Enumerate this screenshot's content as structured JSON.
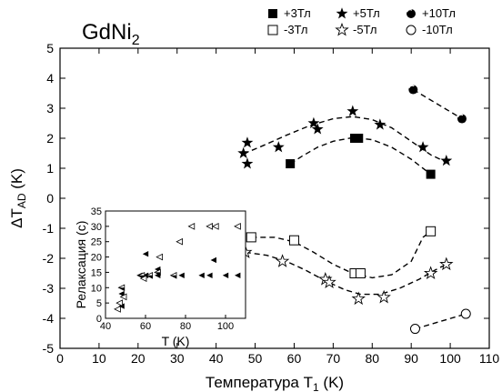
{
  "chart_data": [
    {
      "type": "scatter",
      "title": "GdNi",
      "title_sub": "2",
      "xlabel": "Температура T",
      "xlabel_sub": "1",
      "xlabel_unit": " (K)",
      "ylabel": "ΔT",
      "ylabel_sub": "AD",
      "ylabel_unit": " (K)",
      "xlim": [
        0,
        110
      ],
      "ylim": [
        -5,
        5
      ],
      "xticks": [
        "0",
        "10",
        "20",
        "30",
        "40",
        "50",
        "60",
        "70",
        "80",
        "90",
        "100",
        "110"
      ],
      "yticks": [
        "-5",
        "-4",
        "-3",
        "-2",
        "-1",
        "0",
        "1",
        "2",
        "3",
        "4",
        "5"
      ],
      "legend_position": "top-right",
      "series": [
        {
          "name": "+3Тл",
          "marker": "square-filled",
          "points": [
            [
              59,
              1.15
            ],
            [
              75.5,
              2.0
            ],
            [
              76.5,
              2.0
            ],
            [
              95,
              0.8
            ]
          ]
        },
        {
          "name": "+5Тл",
          "marker": "star-filled",
          "points": [
            [
              47,
              1.5
            ],
            [
              48,
              1.85
            ],
            [
              48,
              1.15
            ],
            [
              56,
              1.7
            ],
            [
              65,
              2.5
            ],
            [
              66,
              2.3
            ],
            [
              75,
              2.9
            ],
            [
              82,
              2.45
            ],
            [
              93,
              1.7
            ],
            [
              99,
              1.25
            ]
          ]
        },
        {
          "name": "+10Тл",
          "marker": "circle-half",
          "points": [
            [
              90.5,
              3.62
            ],
            [
              103,
              2.65
            ]
          ]
        },
        {
          "name": "-3Тл",
          "marker": "square-open",
          "points": [
            [
              49,
              -1.3
            ],
            [
              60,
              -1.4
            ],
            [
              75.5,
              -2.5
            ],
            [
              77,
              -2.5
            ],
            [
              95,
              -1.1
            ]
          ]
        },
        {
          "name": "-5Тл",
          "marker": "star-open",
          "points": [
            [
              47.5,
              -1.8
            ],
            [
              57,
              -2.1
            ],
            [
              68,
              -2.7
            ],
            [
              69,
              -2.8
            ],
            [
              76.5,
              -3.35
            ],
            [
              83,
              -3.3
            ],
            [
              95,
              -2.5
            ],
            [
              99,
              -2.2
            ]
          ]
        },
        {
          "name": "-10Тл",
          "marker": "circle-open",
          "points": [
            [
              91,
              -4.35
            ],
            [
              104,
              -3.85
            ]
          ]
        }
      ],
      "fit_curves": [
        {
          "for": "+3Тл",
          "points": [
            [
              59,
              1.15
            ],
            [
              62,
              1.4
            ],
            [
              66,
              1.7
            ],
            [
              70,
              1.9
            ],
            [
              75,
              2.02
            ],
            [
              80,
              1.95
            ],
            [
              85,
              1.7
            ],
            [
              90,
              1.3
            ],
            [
              95,
              0.8
            ]
          ]
        },
        {
          "for": "+5Тл",
          "points": [
            [
              47,
              1.48
            ],
            [
              52,
              1.75
            ],
            [
              58,
              2.1
            ],
            [
              64,
              2.42
            ],
            [
              70,
              2.65
            ],
            [
              75,
              2.72
            ],
            [
              80,
              2.62
            ],
            [
              85,
              2.35
            ],
            [
              90,
              1.9
            ],
            [
              95,
              1.45
            ],
            [
              99,
              1.2
            ]
          ]
        },
        {
          "for": "+10Тл",
          "points": [
            [
              90.5,
              3.62
            ],
            [
              103,
              2.65
            ]
          ]
        },
        {
          "for": "-3Тл",
          "points": [
            [
              49,
              -1.3
            ],
            [
              55,
              -1.3
            ],
            [
              60,
              -1.45
            ],
            [
              65,
              -1.8
            ],
            [
              70,
              -2.2
            ],
            [
              75,
              -2.5
            ],
            [
              80,
              -2.65
            ],
            [
              85,
              -2.55
            ],
            [
              90,
              -2.1
            ],
            [
              93,
              -1.3
            ],
            [
              95,
              -1.1
            ]
          ]
        },
        {
          "for": "-5Тл",
          "points": [
            [
              47.5,
              -1.8
            ],
            [
              53,
              -1.9
            ],
            [
              58,
              -2.1
            ],
            [
              63,
              -2.4
            ],
            [
              68,
              -2.75
            ],
            [
              73,
              -3.05
            ],
            [
              77,
              -3.2
            ],
            [
              82,
              -3.2
            ],
            [
              87,
              -3.0
            ],
            [
              92,
              -2.7
            ],
            [
              96,
              -2.4
            ],
            [
              99,
              -2.2
            ]
          ]
        },
        {
          "for": "-10Тл",
          "points": [
            [
              91,
              -4.35
            ],
            [
              104,
              -3.85
            ]
          ]
        }
      ]
    },
    {
      "type": "scatter",
      "xlabel": "T (K)",
      "ylabel": "Релаксация (с)",
      "xlim": [
        40,
        110
      ],
      "ylim": [
        0,
        35
      ],
      "xticks": [
        "40",
        "60",
        "80",
        "100"
      ],
      "yticks": [
        "0",
        "5",
        "10",
        "15",
        "20",
        "25",
        "30",
        "35"
      ],
      "series": [
        {
          "marker": "triangle-left-filled",
          "points": [
            [
              48,
              4
            ],
            [
              48,
              8
            ],
            [
              57,
              14
            ],
            [
              60,
              21
            ],
            [
              60,
              14
            ],
            [
              66,
              16
            ],
            [
              66,
              14
            ],
            [
              78,
              14
            ],
            [
              88,
              14
            ],
            [
              92,
              14
            ],
            [
              94,
              19
            ],
            [
              100,
              14
            ],
            [
              106,
              14
            ]
          ]
        },
        {
          "marker": "triangle-left-half",
          "points": [
            [
              48,
              10
            ],
            [
              58,
              14
            ],
            [
              62,
              14
            ],
            [
              66,
              15
            ],
            [
              74,
              14
            ]
          ]
        },
        {
          "marker": "triangle-left-open",
          "points": [
            [
              46,
              3
            ],
            [
              47,
              5
            ],
            [
              49,
              7
            ],
            [
              59,
              13
            ],
            [
              67,
              20
            ],
            [
              77,
              25
            ],
            [
              83,
              30
            ],
            [
              92,
              30
            ],
            [
              95,
              30
            ],
            [
              106,
              30
            ]
          ]
        }
      ]
    }
  ]
}
